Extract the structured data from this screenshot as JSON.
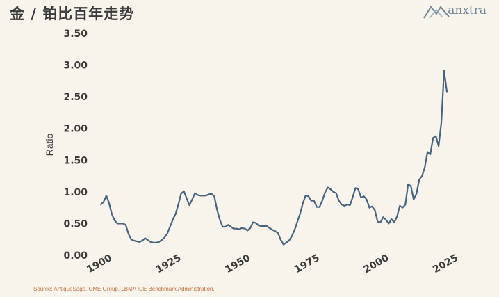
{
  "header": {
    "title": "金 / 铂比百年走势",
    "brand": "anxtra"
  },
  "footer": {
    "source": "Source: AntiqueSage, CME Group, LBMA ICE Benchmark Administration."
  },
  "colors": {
    "background": "#f8f4ec",
    "line": "#46637f",
    "logo": "#6f8796",
    "source_text": "#c0703a"
  },
  "chart_data": {
    "type": "line",
    "title": "金 / 铂比百年走势",
    "xlabel": "",
    "ylabel": "Ratio",
    "xlim": [
      1900,
      2026
    ],
    "ylim": [
      0,
      3.5
    ],
    "xticks": [
      1900,
      1925,
      1950,
      1975,
      2000,
      2025
    ],
    "yticks": [
      0.0,
      0.5,
      1.0,
      1.5,
      2.0,
      2.5,
      3.0,
      3.5
    ],
    "ytick_labels": [
      "0.00",
      "0.50",
      "1.00",
      "1.50",
      "2.00",
      "2.50",
      "3.00",
      "3.50"
    ],
    "grid": false,
    "series": [
      {
        "x": [
          1900,
          1901,
          1902,
          1903,
          1904,
          1905,
          1906,
          1907,
          1908,
          1909,
          1910,
          1911,
          1912,
          1913,
          1914,
          1915,
          1916,
          1917,
          1918,
          1919,
          1920,
          1921,
          1922,
          1923,
          1924,
          1925,
          1926,
          1927,
          1928,
          1929,
          1930,
          1931,
          1932,
          1933,
          1934,
          1935,
          1936,
          1937,
          1938,
          1939,
          1940,
          1941,
          1942,
          1943,
          1944,
          1945,
          1946,
          1947,
          1948,
          1949,
          1950,
          1951,
          1952,
          1953,
          1954,
          1955,
          1956,
          1957,
          1958,
          1959,
          1960,
          1961,
          1962,
          1963,
          1964,
          1965,
          1966,
          1967,
          1968,
          1969,
          1970,
          1971,
          1972,
          1973,
          1974,
          1975,
          1976,
          1977,
          1978,
          1979,
          1980,
          1981,
          1982,
          1983,
          1984,
          1985,
          1986,
          1987,
          1988,
          1989,
          1990,
          1991,
          1992,
          1993,
          1994,
          1995,
          1996,
          1997,
          1998,
          1999,
          2000,
          2001,
          2002,
          2003,
          2004,
          2005,
          2006,
          2007,
          2008,
          2009,
          2010,
          2011,
          2012,
          2013,
          2014,
          2015,
          2016,
          2017,
          2018,
          2019,
          2020,
          2021,
          2022,
          2023,
          2024,
          2025
        ],
        "values": [
          0.8,
          0.84,
          0.94,
          0.82,
          0.65,
          0.55,
          0.5,
          0.5,
          0.5,
          0.48,
          0.34,
          0.25,
          0.23,
          0.22,
          0.21,
          0.23,
          0.27,
          0.24,
          0.21,
          0.2,
          0.2,
          0.21,
          0.24,
          0.28,
          0.34,
          0.45,
          0.56,
          0.65,
          0.8,
          0.97,
          1.01,
          0.9,
          0.79,
          0.88,
          0.98,
          0.95,
          0.94,
          0.94,
          0.94,
          0.96,
          0.97,
          0.93,
          0.72,
          0.56,
          0.45,
          0.45,
          0.48,
          0.45,
          0.42,
          0.42,
          0.41,
          0.43,
          0.42,
          0.39,
          0.43,
          0.52,
          0.51,
          0.47,
          0.46,
          0.46,
          0.46,
          0.43,
          0.4,
          0.38,
          0.35,
          0.24,
          0.17,
          0.2,
          0.23,
          0.3,
          0.4,
          0.53,
          0.66,
          0.82,
          0.94,
          0.93,
          0.86,
          0.86,
          0.76,
          0.76,
          0.86,
          0.99,
          1.07,
          1.04,
          1.0,
          0.98,
          0.86,
          0.8,
          0.78,
          0.8,
          0.79,
          0.92,
          1.06,
          1.04,
          0.91,
          0.93,
          0.88,
          0.75,
          0.77,
          0.71,
          0.53,
          0.52,
          0.6,
          0.56,
          0.5,
          0.57,
          0.52,
          0.61,
          0.78,
          0.75,
          0.8,
          1.12,
          1.09,
          0.88,
          0.97,
          1.19,
          1.25,
          1.38,
          1.63,
          1.59,
          1.85,
          1.88,
          1.72,
          2.09,
          2.91,
          2.58
        ]
      }
    ]
  }
}
